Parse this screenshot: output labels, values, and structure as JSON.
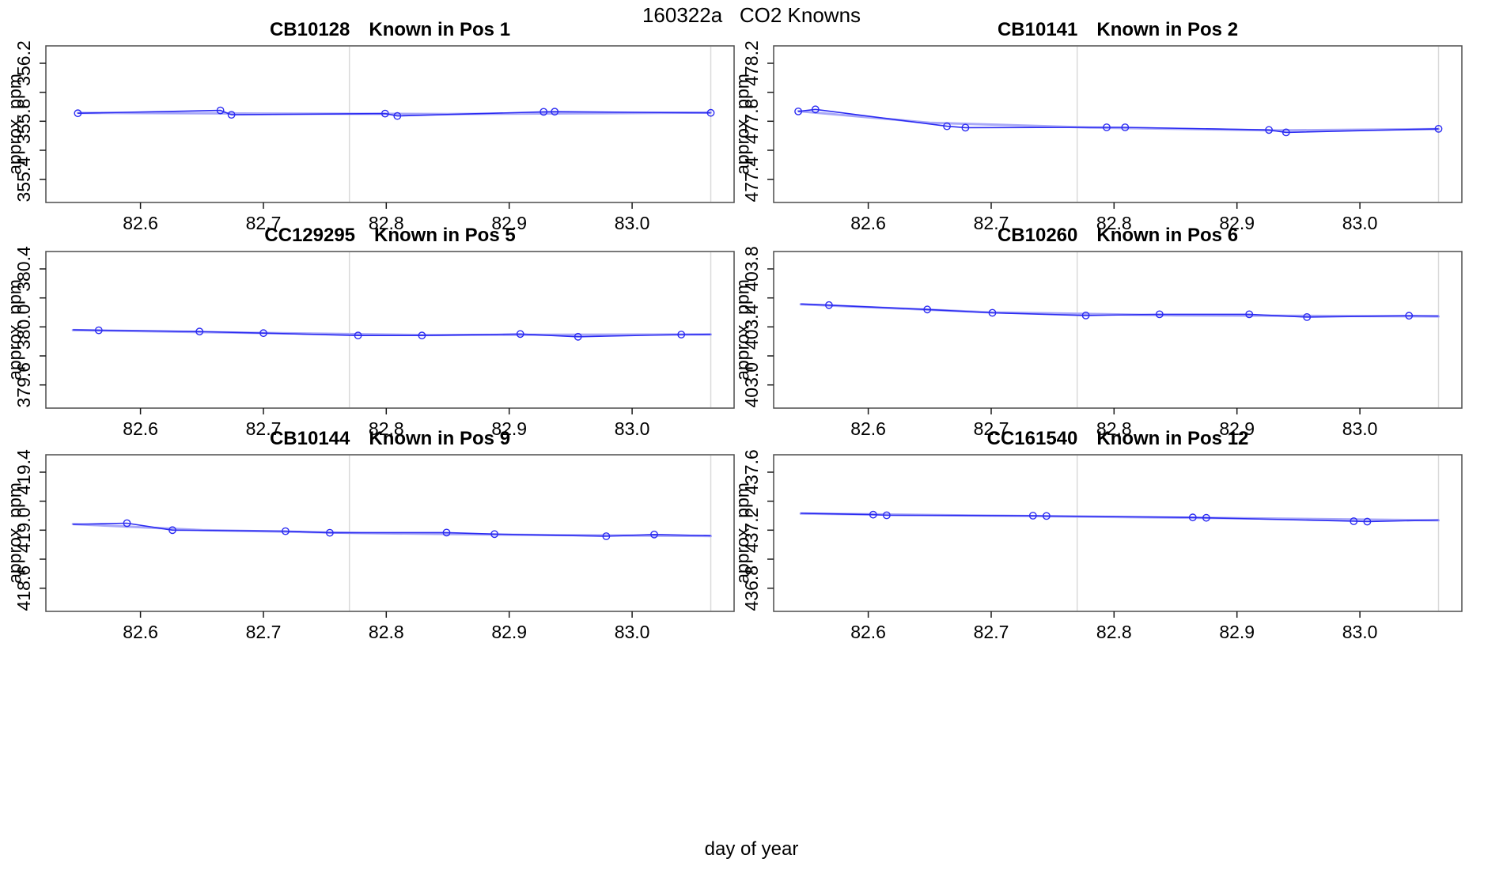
{
  "figure": {
    "title": "160322a   CO2 Knowns",
    "xlabel": "day of year"
  },
  "style": {
    "background": "#ffffff",
    "line_color": "#2b2bf2",
    "smooth_color": "#a8a8f8",
    "vline_color": "#d9d9d9",
    "box_color": "#4d4d4d",
    "tick_color": "#1a1a1a",
    "text_color": "#000000"
  },
  "chart_data": [
    {
      "type": "line",
      "sample": "CB10128",
      "position": "Known in Pos 1",
      "ylabel": "approx. ppm",
      "xlim": [
        82.523,
        83.083
      ],
      "ylim": [
        355.24,
        356.32
      ],
      "x_ticks": [
        82.6,
        82.7,
        82.8,
        82.9,
        83.0
      ],
      "x_tick_labels": [
        "82.6",
        "82.7",
        "82.8",
        "82.9",
        "83.0"
      ],
      "y_ticks": [
        355.4,
        355.6,
        355.8,
        356.0,
        356.2
      ],
      "y_tick_labels": [
        "355.4",
        "",
        "355.8",
        "",
        "356.2"
      ],
      "vlines": [
        82.77,
        83.064
      ],
      "line_points": [
        [
          82.549,
          355.855
        ],
        [
          82.665,
          355.875
        ],
        [
          82.674,
          355.845
        ],
        [
          82.799,
          355.853
        ],
        [
          82.809,
          355.837
        ],
        [
          82.928,
          355.865
        ],
        [
          82.937,
          355.866
        ],
        [
          83.064,
          355.858
        ]
      ],
      "marker_points": [
        [
          82.549,
          355.855
        ],
        [
          82.665,
          355.875
        ],
        [
          82.674,
          355.845
        ],
        [
          82.799,
          355.853
        ],
        [
          82.809,
          355.837
        ],
        [
          82.928,
          355.865
        ],
        [
          82.937,
          355.866
        ],
        [
          83.064,
          355.858
        ]
      ],
      "smooth_points": [
        [
          82.549,
          355.858
        ],
        [
          82.7,
          355.853
        ],
        [
          82.85,
          355.85
        ],
        [
          83.064,
          355.86
        ]
      ]
    },
    {
      "type": "line",
      "sample": "CB10141",
      "position": "Known in Pos 2",
      "ylabel": "approx. ppm",
      "xlim": [
        82.523,
        83.083
      ],
      "ylim": [
        477.24,
        478.32
      ],
      "x_ticks": [
        82.6,
        82.7,
        82.8,
        82.9,
        83.0
      ],
      "x_tick_labels": [
        "82.6",
        "82.7",
        "82.8",
        "82.9",
        "83.0"
      ],
      "y_ticks": [
        477.4,
        477.6,
        477.8,
        478.0,
        478.2
      ],
      "y_tick_labels": [
        "477.4",
        "",
        "477.8",
        "",
        "478.2"
      ],
      "vlines": [
        82.77,
        83.064
      ],
      "line_points": [
        [
          82.543,
          477.868
        ],
        [
          82.557,
          477.882
        ],
        [
          82.664,
          477.766
        ],
        [
          82.679,
          477.756
        ],
        [
          82.794,
          477.758
        ],
        [
          82.809,
          477.758
        ],
        [
          82.926,
          477.74
        ],
        [
          82.94,
          477.723
        ],
        [
          83.064,
          477.748
        ]
      ],
      "marker_points": [
        [
          82.543,
          477.868
        ],
        [
          82.557,
          477.882
        ],
        [
          82.664,
          477.766
        ],
        [
          82.679,
          477.756
        ],
        [
          82.794,
          477.758
        ],
        [
          82.809,
          477.758
        ],
        [
          82.926,
          477.74
        ],
        [
          82.94,
          477.723
        ],
        [
          83.064,
          477.748
        ]
      ],
      "smooth_points": [
        [
          82.543,
          477.87
        ],
        [
          82.65,
          477.79
        ],
        [
          82.78,
          477.757
        ],
        [
          82.93,
          477.737
        ],
        [
          83.064,
          477.746
        ]
      ]
    },
    {
      "type": "line",
      "sample": "CC129295",
      "position": "Known in Pos 5",
      "ylabel": "approx. ppm",
      "xlim": [
        82.523,
        83.083
      ],
      "ylim": [
        379.44,
        380.52
      ],
      "x_ticks": [
        82.6,
        82.7,
        82.8,
        82.9,
        83.0
      ],
      "x_tick_labels": [
        "82.6",
        "82.7",
        "82.8",
        "82.9",
        "83.0"
      ],
      "y_ticks": [
        379.6,
        379.8,
        380.0,
        380.2,
        380.4
      ],
      "y_tick_labels": [
        "379.6",
        "",
        "380.0",
        "",
        "380.4"
      ],
      "vlines": [
        82.77,
        83.064
      ],
      "line_points": [
        [
          82.545,
          379.98
        ],
        [
          82.566,
          379.977
        ],
        [
          82.648,
          379.968
        ],
        [
          82.7,
          379.957
        ],
        [
          82.777,
          379.941
        ],
        [
          82.829,
          379.941
        ],
        [
          82.909,
          379.951
        ],
        [
          82.956,
          379.932
        ],
        [
          83.04,
          379.947
        ],
        [
          83.064,
          379.949
        ]
      ],
      "marker_points": [
        [
          82.566,
          379.977
        ],
        [
          82.648,
          379.968
        ],
        [
          82.7,
          379.957
        ],
        [
          82.777,
          379.941
        ],
        [
          82.829,
          379.941
        ],
        [
          82.909,
          379.951
        ],
        [
          82.956,
          379.932
        ],
        [
          83.04,
          379.947
        ]
      ],
      "smooth_points": [
        [
          82.545,
          379.978
        ],
        [
          82.7,
          379.958
        ],
        [
          82.83,
          379.944
        ],
        [
          83.064,
          379.948
        ]
      ]
    },
    {
      "type": "line",
      "sample": "CB10260",
      "position": "Known in Pos 6",
      "ylabel": "approx. ppm",
      "xlim": [
        82.523,
        83.083
      ],
      "ylim": [
        402.84,
        403.92
      ],
      "x_ticks": [
        82.6,
        82.7,
        82.8,
        82.9,
        83.0
      ],
      "x_tick_labels": [
        "82.6",
        "82.7",
        "82.8",
        "82.9",
        "83.0"
      ],
      "y_ticks": [
        403.0,
        403.2,
        403.4,
        403.6,
        403.8
      ],
      "y_tick_labels": [
        "403.0",
        "",
        "403.4",
        "",
        "403.8"
      ],
      "vlines": [
        82.77,
        83.064
      ],
      "line_points": [
        [
          82.545,
          403.558
        ],
        [
          82.568,
          403.55
        ],
        [
          82.648,
          403.52
        ],
        [
          82.701,
          403.497
        ],
        [
          82.777,
          403.479
        ],
        [
          82.837,
          403.487
        ],
        [
          82.91,
          403.487
        ],
        [
          82.957,
          403.468
        ],
        [
          83.04,
          403.477
        ],
        [
          83.064,
          403.475
        ]
      ],
      "marker_points": [
        [
          82.568,
          403.55
        ],
        [
          82.648,
          403.52
        ],
        [
          82.701,
          403.497
        ],
        [
          82.777,
          403.479
        ],
        [
          82.837,
          403.487
        ],
        [
          82.91,
          403.487
        ],
        [
          82.957,
          403.468
        ],
        [
          83.04,
          403.477
        ]
      ],
      "smooth_points": [
        [
          82.545,
          403.556
        ],
        [
          82.7,
          403.5
        ],
        [
          82.85,
          403.48
        ],
        [
          83.064,
          403.472
        ]
      ]
    },
    {
      "type": "line",
      "sample": "CB10144",
      "position": "Known in Pos 9",
      "ylabel": "approx. ppm",
      "xlim": [
        82.523,
        83.083
      ],
      "ylim": [
        418.44,
        419.52
      ],
      "x_ticks": [
        82.6,
        82.7,
        82.8,
        82.9,
        83.0
      ],
      "x_tick_labels": [
        "82.6",
        "82.7",
        "82.8",
        "82.9",
        "83.0"
      ],
      "y_ticks": [
        418.6,
        418.8,
        419.0,
        419.2,
        419.4
      ],
      "y_tick_labels": [
        "418.6",
        "",
        "419.0",
        "",
        "419.4"
      ],
      "vlines": [
        82.77,
        83.064
      ],
      "line_points": [
        [
          82.545,
          419.04
        ],
        [
          82.589,
          419.048
        ],
        [
          82.626,
          419.0
        ],
        [
          82.718,
          418.993
        ],
        [
          82.754,
          418.982
        ],
        [
          82.849,
          418.983
        ],
        [
          82.888,
          418.973
        ],
        [
          82.979,
          418.958
        ],
        [
          83.018,
          418.97
        ],
        [
          83.064,
          418.962
        ]
      ],
      "marker_points": [
        [
          82.589,
          419.048
        ],
        [
          82.626,
          419.0
        ],
        [
          82.718,
          418.993
        ],
        [
          82.754,
          418.982
        ],
        [
          82.849,
          418.983
        ],
        [
          82.888,
          418.973
        ],
        [
          82.979,
          418.958
        ],
        [
          83.018,
          418.97
        ]
      ],
      "smooth_points": [
        [
          82.545,
          419.042
        ],
        [
          82.65,
          419.0
        ],
        [
          82.78,
          418.98
        ],
        [
          82.92,
          418.967
        ],
        [
          83.064,
          418.96
        ]
      ]
    },
    {
      "type": "line",
      "sample": "CC161540",
      "position": "Known in Pos 12",
      "ylabel": "approx. ppm",
      "xlim": [
        82.523,
        83.083
      ],
      "ylim": [
        436.64,
        437.72
      ],
      "x_ticks": [
        82.6,
        82.7,
        82.8,
        82.9,
        83.0
      ],
      "x_tick_labels": [
        "82.6",
        "82.7",
        "82.8",
        "82.9",
        "83.0"
      ],
      "y_ticks": [
        436.8,
        437.0,
        437.2,
        437.4,
        437.6
      ],
      "y_tick_labels": [
        "436.8",
        "",
        "437.2",
        "",
        "437.6"
      ],
      "vlines": [
        82.77,
        83.064
      ],
      "line_points": [
        [
          82.545,
          437.317
        ],
        [
          82.604,
          437.307
        ],
        [
          82.615,
          437.303
        ],
        [
          82.734,
          437.3
        ],
        [
          82.745,
          437.298
        ],
        [
          82.864,
          437.288
        ],
        [
          82.875,
          437.285
        ],
        [
          82.995,
          437.262
        ],
        [
          83.006,
          437.259
        ],
        [
          83.064,
          437.27
        ]
      ],
      "marker_points": [
        [
          82.604,
          437.307
        ],
        [
          82.615,
          437.303
        ],
        [
          82.734,
          437.3
        ],
        [
          82.745,
          437.298
        ],
        [
          82.864,
          437.288
        ],
        [
          82.875,
          437.285
        ],
        [
          82.995,
          437.262
        ],
        [
          83.006,
          437.259
        ]
      ],
      "smooth_points": [
        [
          82.545,
          437.315
        ],
        [
          82.7,
          437.3
        ],
        [
          82.87,
          437.285
        ],
        [
          83.064,
          437.268
        ]
      ]
    }
  ]
}
